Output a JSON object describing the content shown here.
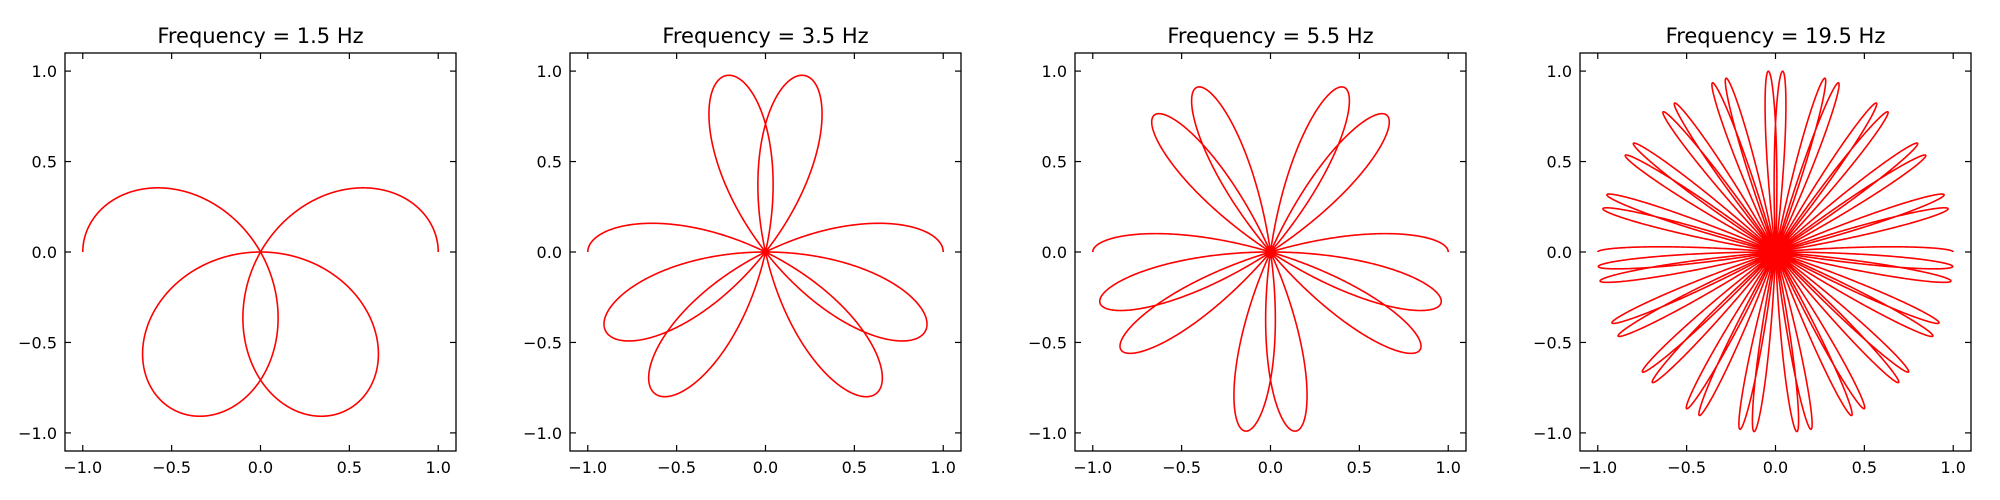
{
  "chart_data": [
    {
      "type": "line",
      "title": "Frequency = 1.5 Hz",
      "frequency_hz": 1.5,
      "curve": "x = cos(2π·t)·cos(2π·f·t), y = sin(2π·t)·cos(2π·f·t)",
      "series": [
        {
          "name": "",
          "color": "#ff0000"
        }
      ],
      "xlim": [
        -1.1,
        1.1
      ],
      "ylim": [
        -1.1,
        1.1
      ],
      "xticks": [
        -1.0,
        -0.5,
        0.0,
        0.5,
        1.0
      ],
      "yticks": [
        -1.0,
        -0.5,
        0.0,
        0.5,
        1.0
      ],
      "xtick_labels": [
        "−1.0",
        "−0.5",
        "0.0",
        "0.5",
        "1.0"
      ],
      "ytick_labels": [
        "−1.0",
        "−0.5",
        "0.0",
        "0.5",
        "1.0"
      ],
      "xlabel": "",
      "ylabel": "",
      "grid": false
    },
    {
      "type": "line",
      "title": "Frequency = 3.5 Hz",
      "frequency_hz": 3.5,
      "curve": "x = cos(2π·t)·cos(2π·f·t), y = sin(2π·t)·cos(2π·f·t)",
      "series": [
        {
          "name": "",
          "color": "#ff0000"
        }
      ],
      "xlim": [
        -1.1,
        1.1
      ],
      "ylim": [
        -1.1,
        1.1
      ],
      "xticks": [
        -1.0,
        -0.5,
        0.0,
        0.5,
        1.0
      ],
      "yticks": [
        -1.0,
        -0.5,
        0.0,
        0.5,
        1.0
      ],
      "xtick_labels": [
        "−1.0",
        "−0.5",
        "0.0",
        "0.5",
        "1.0"
      ],
      "ytick_labels": [
        "−1.0",
        "−0.5",
        "0.0",
        "0.5",
        "1.0"
      ],
      "xlabel": "",
      "ylabel": "",
      "grid": false
    },
    {
      "type": "line",
      "title": "Frequency = 5.5 Hz",
      "frequency_hz": 5.5,
      "curve": "x = cos(2π·t)·cos(2π·f·t), y = sin(2π·t)·cos(2π·f·t)",
      "series": [
        {
          "name": "",
          "color": "#ff0000"
        }
      ],
      "xlim": [
        -1.1,
        1.1
      ],
      "ylim": [
        -1.1,
        1.1
      ],
      "xticks": [
        -1.0,
        -0.5,
        0.0,
        0.5,
        1.0
      ],
      "yticks": [
        -1.0,
        -0.5,
        0.0,
        0.5,
        1.0
      ],
      "xtick_labels": [
        "−1.0",
        "−0.5",
        "0.0",
        "0.5",
        "1.0"
      ],
      "ytick_labels": [
        "−1.0",
        "−0.5",
        "0.0",
        "0.5",
        "1.0"
      ],
      "xlabel": "",
      "ylabel": "",
      "grid": false
    },
    {
      "type": "line",
      "title": "Frequency = 19.5 Hz",
      "frequency_hz": 19.5,
      "curve": "x = cos(2π·t)·cos(2π·f·t), y = sin(2π·t)·cos(2π·f·t)",
      "series": [
        {
          "name": "",
          "color": "#ff0000"
        }
      ],
      "xlim": [
        -1.1,
        1.1
      ],
      "ylim": [
        -1.1,
        1.1
      ],
      "xticks": [
        -1.0,
        -0.5,
        0.0,
        0.5,
        1.0
      ],
      "yticks": [
        -1.0,
        -0.5,
        0.0,
        0.5,
        1.0
      ],
      "xtick_labels": [
        "−1.0",
        "−0.5",
        "0.0",
        "0.5",
        "1.0"
      ],
      "ytick_labels": [
        "−1.0",
        "−0.5",
        "0.0",
        "0.5",
        "1.0"
      ],
      "xlabel": "",
      "ylabel": "",
      "grid": false
    }
  ]
}
